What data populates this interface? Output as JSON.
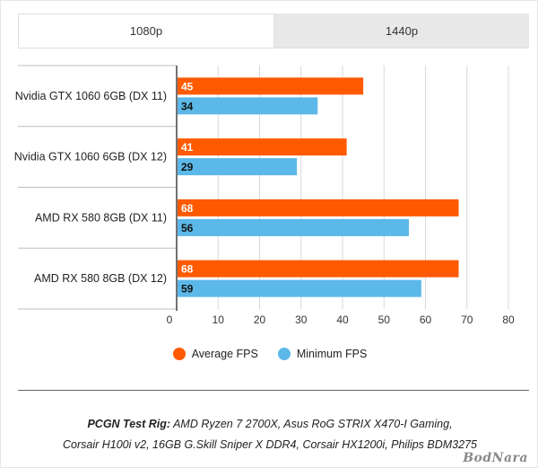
{
  "tabs": [
    {
      "label": "1080p",
      "active": true
    },
    {
      "label": "1440p",
      "active": false
    }
  ],
  "chart_data": {
    "type": "bar",
    "orientation": "horizontal",
    "categories": [
      "Nvidia GTX 1060 6GB (DX 11)",
      "Nvidia GTX 1060 6GB (DX 12)",
      "AMD RX 580 8GB (DX 11)",
      "AMD RX 580 8GB (DX 12)"
    ],
    "series": [
      {
        "name": "Average FPS",
        "color": "#ff5a00",
        "label_color": "#ffffff",
        "values": [
          45,
          41,
          68,
          68
        ]
      },
      {
        "name": "Minimum FPS",
        "color": "#5bb8e8",
        "label_color": "#111111",
        "values": [
          34,
          29,
          56,
          59
        ]
      }
    ],
    "xlim": [
      0,
      80
    ],
    "xticks": [
      0,
      10,
      20,
      30,
      40,
      50,
      60,
      70,
      80
    ],
    "grid": true,
    "legend_position": "bottom"
  },
  "footer": {
    "rig_label": "PCGN Test Rig:",
    "rig_line1": "AMD Ryzen 7 2700X, Asus RoG STRIX X470-I Gaming,",
    "rig_line2": "Corsair H100i v2, 16GB G.Skill Sniper X DDR4, Corsair HX1200i, Philips BDM3275"
  },
  "watermark": "BodNara"
}
